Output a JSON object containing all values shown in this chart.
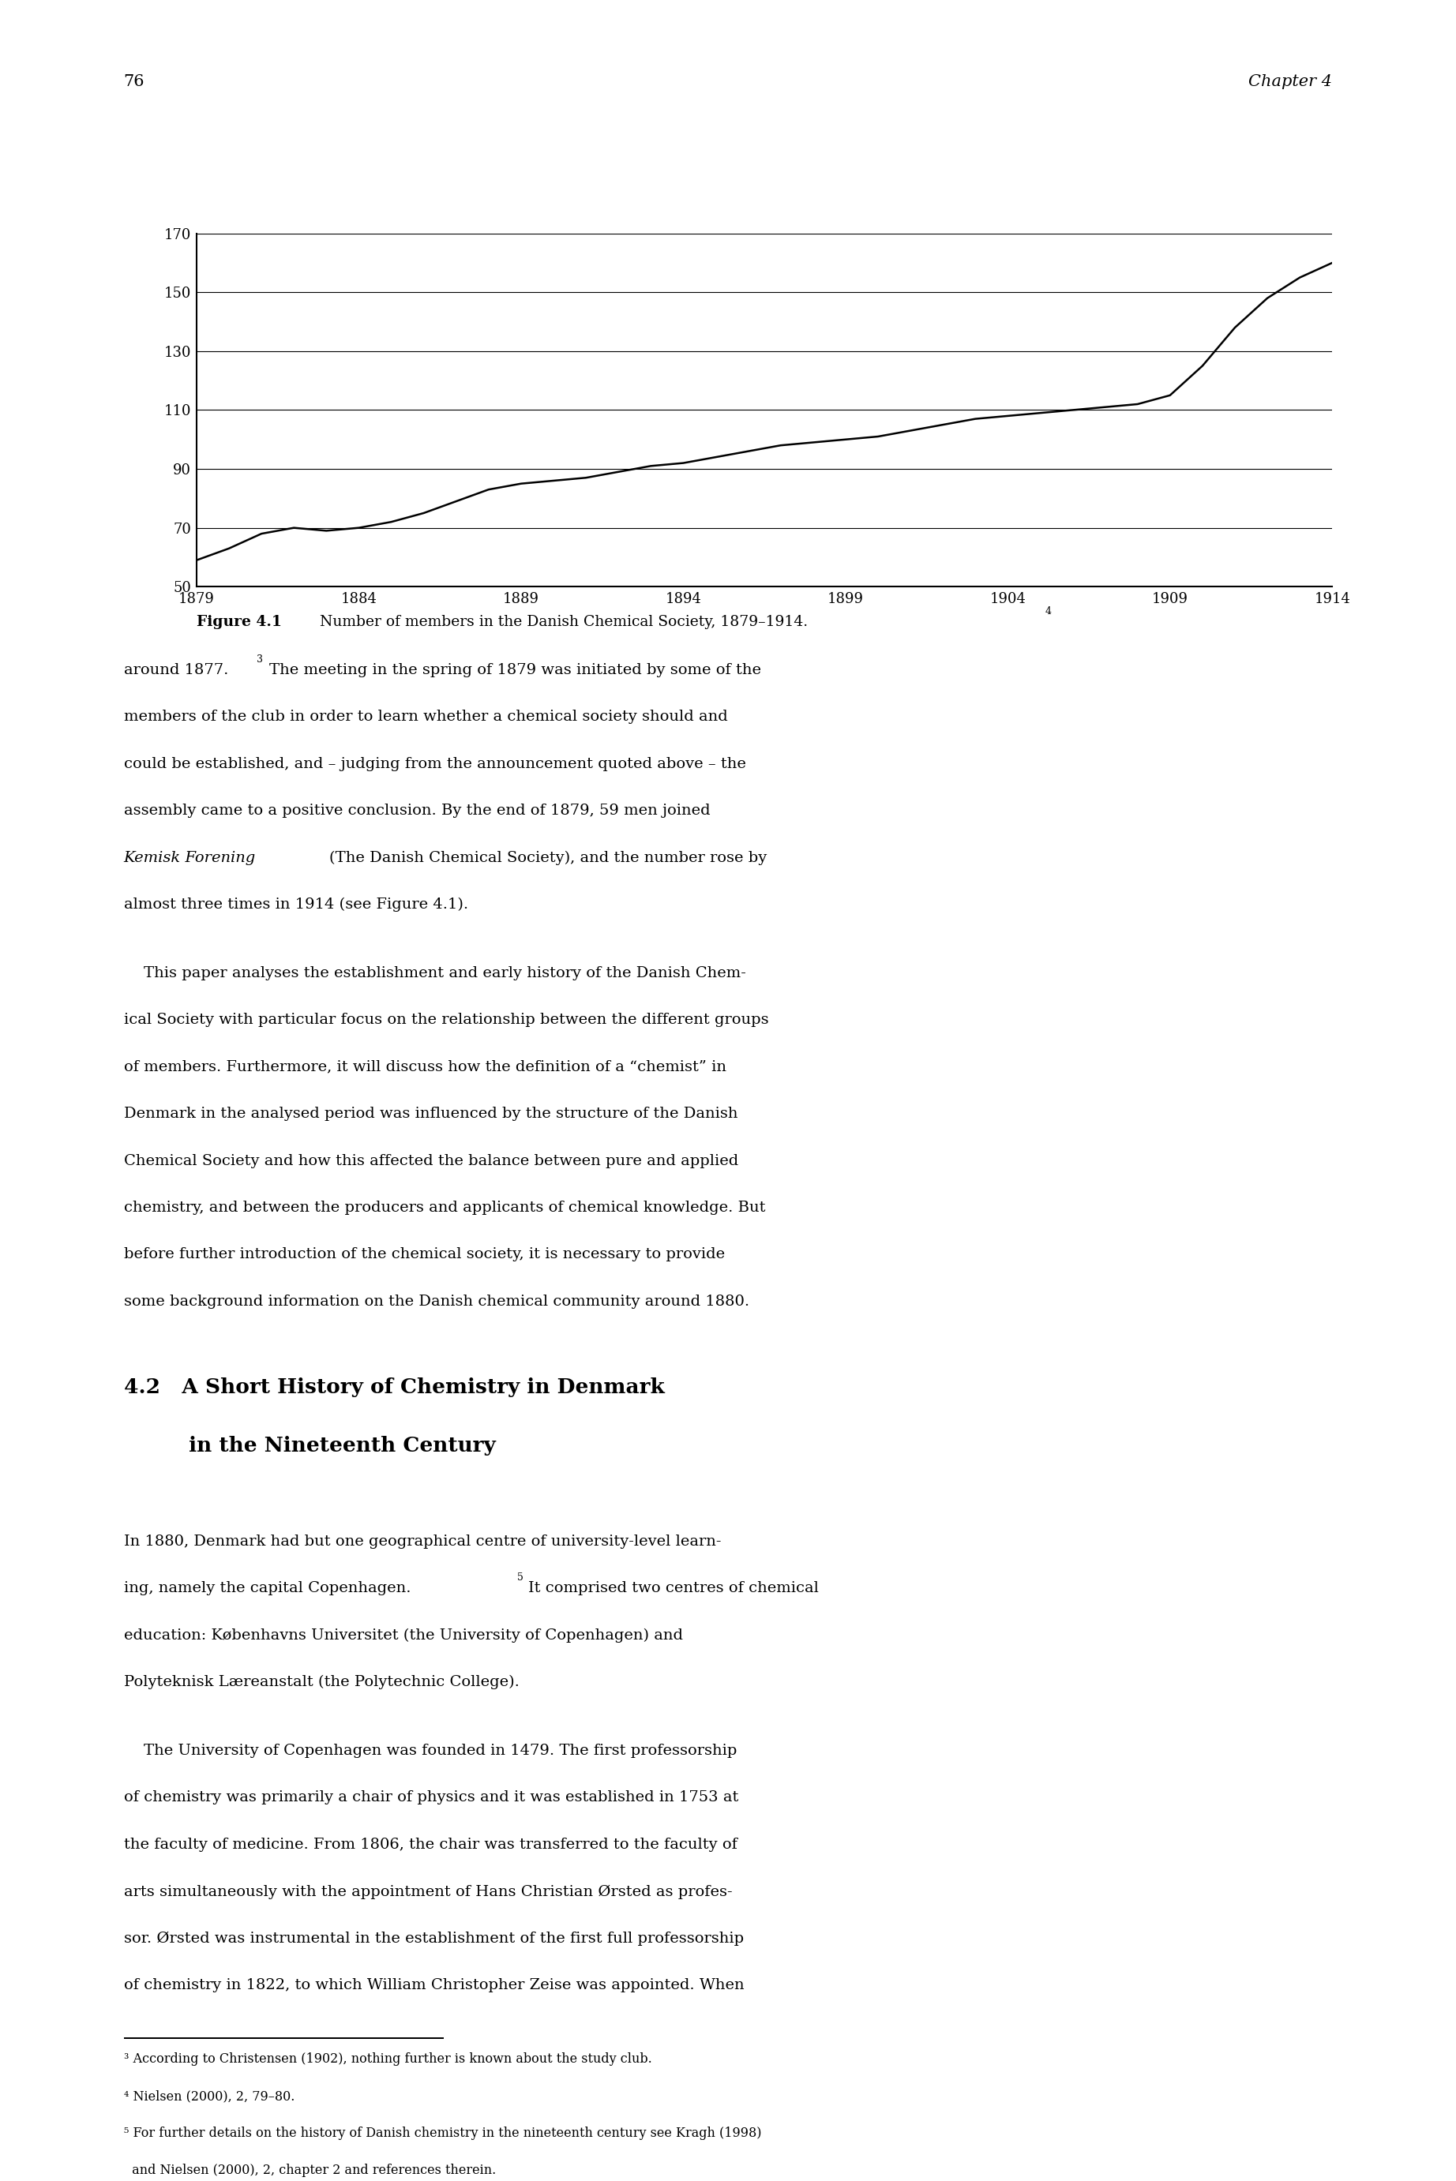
{
  "page_number": "76",
  "chapter_header": "Chapter 4",
  "chart": {
    "x_values": [
      1879,
      1880,
      1881,
      1882,
      1883,
      1884,
      1885,
      1886,
      1887,
      1888,
      1889,
      1890,
      1891,
      1892,
      1893,
      1894,
      1895,
      1896,
      1897,
      1898,
      1899,
      1900,
      1901,
      1902,
      1903,
      1904,
      1905,
      1906,
      1907,
      1908,
      1909,
      1910,
      1911,
      1912,
      1913,
      1914
    ],
    "y_values": [
      59,
      63,
      68,
      70,
      69,
      70,
      72,
      75,
      79,
      83,
      85,
      86,
      87,
      89,
      91,
      92,
      94,
      96,
      98,
      99,
      100,
      101,
      103,
      105,
      107,
      108,
      109,
      110,
      111,
      112,
      115,
      125,
      138,
      148,
      155,
      160
    ],
    "x_ticks": [
      1879,
      1884,
      1889,
      1894,
      1899,
      1904,
      1909,
      1914
    ],
    "y_ticks": [
      50,
      70,
      90,
      110,
      130,
      150,
      170
    ],
    "x_min": 1879,
    "x_max": 1914,
    "y_min": 50,
    "y_max": 170,
    "line_color": "#000000",
    "line_width": 1.8,
    "grid_color": "#000000",
    "grid_linewidth": 0.8,
    "bg_color": "#ffffff"
  },
  "figure_caption_bold": "Figure 4.1",
  "figure_caption_normal": "   Number of members in the Danish Chemical Society, 1879–1914.",
  "figure_caption_super": "4",
  "para1_lines": [
    "around 1877.",
    "3",
    " The meeting in the spring of 1879 was initiated by some of the",
    "members of the club in order to learn whether a chemical society should and",
    "could be established, and – judging from the announcement quoted above – the",
    "assembly came to a positive conclusion. By the end of 1879, 59 men joined",
    "Kemisk Forening",
    " (The Danish Chemical Society), and the number rose by",
    "almost three times in 1914 (see Figure 4.1)."
  ],
  "para2_lines": [
    "    This paper analyses the establishment and early history of the Danish Chem-",
    "ical Society with particular focus on the relationship between the different groups",
    "of members. Furthermore, it will discuss how the definition of a “chemist” in",
    "Denmark in the analysed period was influenced by the structure of the Danish",
    "Chemical Society and how this affected the balance between pure and applied",
    "chemistry, and between the producers and applicants of chemical knowledge. But",
    "before further introduction of the chemical society, it is necessary to provide",
    "some background information on the Danish chemical community around 1880."
  ],
  "heading_line1": "4.2   A Short History of Chemistry in Denmark",
  "heading_line2": "         in the Nineteenth Century",
  "sec_para1_lines": [
    "In 1880, Denmark had but one geographical centre of university-level learn-",
    "ing, namely the capital Copenhagen.",
    "5",
    " It comprised two centres of chemical",
    "education: Københavns Universitet (the University of Copenhagen) and",
    "Polyteknisk Læreanstalt (the Polytechnic College)."
  ],
  "sec_para2_lines": [
    "    The University of Copenhagen was founded in 1479. The first professorship",
    "of chemistry was primarily a chair of physics and it was established in 1753 at",
    "the faculty of medicine. From 1806, the chair was transferred to the faculty of",
    "arts simultaneously with the appointment of Hans Christian Ørsted as profes-",
    "sor. Ørsted was instrumental in the establishment of the first full professorship",
    "of chemistry in 1822, to which William Christopher Zeise was appointed. When"
  ],
  "footnotes": [
    "³ According to Christensen (1902), nothing further is known about the study club.",
    "⁴ Nielsen (2000), 2, 79–80.",
    "⁵ For further details on the history of Danish chemistry in the nineteenth century see Kragh (1998)",
    "  and Nielsen (2000), 2, chapter 2 and references therein."
  ],
  "font_family": "serif",
  "page_bg": "#ffffff",
  "text_color": "#000000"
}
